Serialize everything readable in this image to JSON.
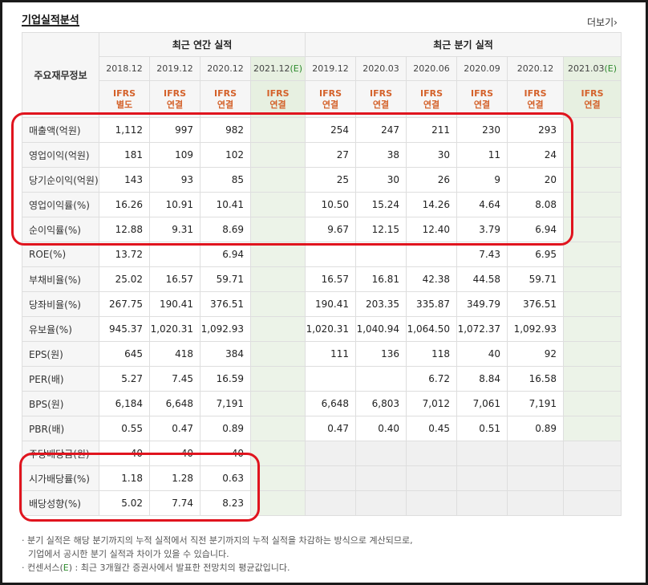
{
  "section_title": "기업실적분석",
  "more_link": "더보기",
  "header": {
    "corner_label": "주요재무정보",
    "annual_group": "최근 연간 실적",
    "quarter_group": "최근 분기 실적",
    "annual_periods": [
      "2018.12",
      "2019.12",
      "2020.12",
      "2021.12"
    ],
    "quarter_periods": [
      "2019.12",
      "2020.03",
      "2020.06",
      "2020.09",
      "2020.12",
      "2021.03"
    ],
    "estimate_mark": "(E)",
    "annual_types": [
      [
        "IFRS",
        "별도"
      ],
      [
        "IFRS",
        "연결"
      ],
      [
        "IFRS",
        "연결"
      ],
      [
        "IFRS",
        "연결"
      ]
    ],
    "quarter_types": [
      [
        "IFRS",
        "연결"
      ],
      [
        "IFRS",
        "연결"
      ],
      [
        "IFRS",
        "연결"
      ],
      [
        "IFRS",
        "연결"
      ],
      [
        "IFRS",
        "연결"
      ],
      [
        "IFRS",
        "연결"
      ]
    ]
  },
  "rows": [
    {
      "label": "매출액(억원)",
      "annual": [
        "1,112",
        "997",
        "982",
        ""
      ],
      "quarter": [
        "254",
        "247",
        "211",
        "230",
        "293",
        ""
      ]
    },
    {
      "label": "영업이익(억원)",
      "annual": [
        "181",
        "109",
        "102",
        ""
      ],
      "quarter": [
        "27",
        "38",
        "30",
        "11",
        "24",
        ""
      ]
    },
    {
      "label": "당기순이익(억원)",
      "annual": [
        "143",
        "93",
        "85",
        ""
      ],
      "quarter": [
        "25",
        "30",
        "26",
        "9",
        "20",
        ""
      ]
    },
    {
      "label": "영업이익률(%)",
      "annual": [
        "16.26",
        "10.91",
        "10.41",
        ""
      ],
      "quarter": [
        "10.50",
        "15.24",
        "14.26",
        "4.64",
        "8.08",
        ""
      ]
    },
    {
      "label": "순이익률(%)",
      "annual": [
        "12.88",
        "9.31",
        "8.69",
        ""
      ],
      "quarter": [
        "9.67",
        "12.15",
        "12.40",
        "3.79",
        "6.94",
        ""
      ]
    },
    {
      "label": "ROE(%)",
      "annual": [
        "13.72",
        "",
        "6.94",
        ""
      ],
      "quarter": [
        "",
        "",
        "",
        "7.43",
        "6.95",
        ""
      ]
    },
    {
      "label": "부채비율(%)",
      "annual": [
        "25.02",
        "16.57",
        "59.71",
        ""
      ],
      "quarter": [
        "16.57",
        "16.81",
        "42.38",
        "44.58",
        "59.71",
        ""
      ]
    },
    {
      "label": "당좌비율(%)",
      "annual": [
        "267.75",
        "190.41",
        "376.51",
        ""
      ],
      "quarter": [
        "190.41",
        "203.35",
        "335.87",
        "349.79",
        "376.51",
        ""
      ]
    },
    {
      "label": "유보율(%)",
      "annual": [
        "945.37",
        "1,020.31",
        "1,092.93",
        ""
      ],
      "quarter": [
        "1,020.31",
        "1,040.94",
        "1,064.50",
        "1,072.37",
        "1,092.93",
        ""
      ]
    },
    {
      "label": "EPS(원)",
      "annual": [
        "645",
        "418",
        "384",
        ""
      ],
      "quarter": [
        "111",
        "136",
        "118",
        "40",
        "92",
        ""
      ]
    },
    {
      "label": "PER(배)",
      "annual": [
        "5.27",
        "7.45",
        "16.59",
        ""
      ],
      "quarter": [
        "",
        "",
        "6.72",
        "8.84",
        "16.58",
        ""
      ]
    },
    {
      "label": "BPS(원)",
      "annual": [
        "6,184",
        "6,648",
        "7,191",
        ""
      ],
      "quarter": [
        "6,648",
        "6,803",
        "7,012",
        "7,061",
        "7,191",
        ""
      ]
    },
    {
      "label": "PBR(배)",
      "annual": [
        "0.55",
        "0.47",
        "0.89",
        ""
      ],
      "quarter": [
        "0.47",
        "0.40",
        "0.45",
        "0.51",
        "0.89",
        ""
      ]
    },
    {
      "label": "주당배당금(원)",
      "annual": [
        "40",
        "40",
        "40",
        ""
      ],
      "quarter": [
        "",
        "",
        "",
        "",
        "",
        ""
      ]
    },
    {
      "label": "시가배당률(%)",
      "annual": [
        "1.18",
        "1.28",
        "0.63",
        ""
      ],
      "quarter": [
        "",
        "",
        "",
        "",
        "",
        ""
      ]
    },
    {
      "label": "배당성향(%)",
      "annual": [
        "5.02",
        "7.74",
        "8.23",
        ""
      ],
      "quarter": [
        "",
        "",
        "",
        "",
        "",
        ""
      ]
    }
  ],
  "notes": {
    "line1": "· 분기 실적은 해당 분기까지의 누적 실적에서 직전 분기까지의 누적 실적을 차감하는 방식으로 계산되므로,",
    "line2": "  기업에서 공시한 분기 실적과 차이가 있을 수 있습니다.",
    "line3_prefix": "· 컨센서스(",
    "line3_mark": "E",
    "line3_suffix": ") : 최근 3개월간 증권사에서 발표한 전망치의 평균값입니다."
  },
  "colors": {
    "accent": "#d4622b",
    "estimate_bg": "#ecf3e8",
    "highlight_box": "#e0141e",
    "estimate_text": "#2d8a2d"
  }
}
